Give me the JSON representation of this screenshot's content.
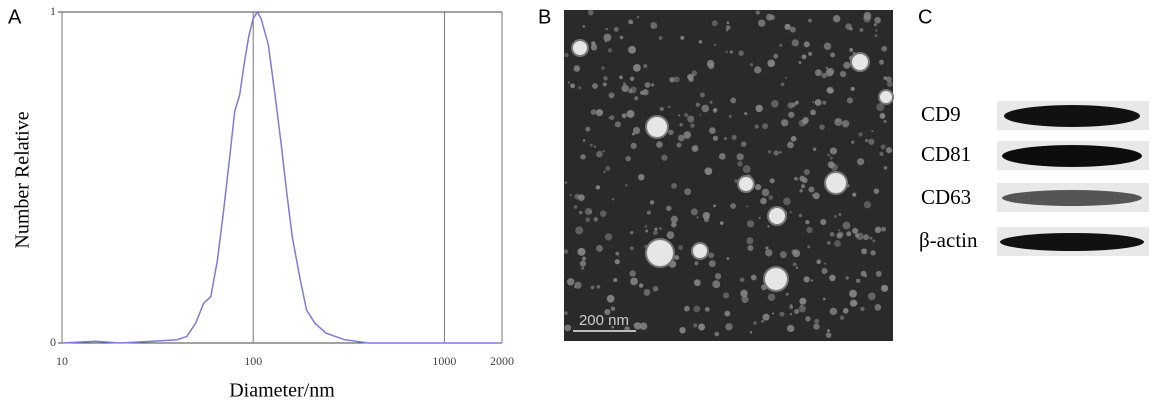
{
  "panels": [
    "A",
    "B",
    "C"
  ],
  "chart_data": {
    "type": "line",
    "xlabel": "Diameter/nm",
    "ylabel": "Number Relative",
    "x": [
      10,
      15,
      20,
      30,
      40,
      45,
      50,
      55,
      60,
      65,
      70,
      75,
      80,
      85,
      90,
      95,
      100,
      105,
      110,
      120,
      130,
      140,
      150,
      160,
      175,
      190,
      210,
      240,
      300,
      400,
      1000,
      2000
    ],
    "values": [
      0,
      0.005,
      0,
      0.005,
      0.01,
      0.02,
      0.06,
      0.12,
      0.14,
      0.25,
      0.4,
      0.55,
      0.7,
      0.75,
      0.85,
      0.93,
      0.98,
      1.0,
      0.98,
      0.9,
      0.75,
      0.6,
      0.45,
      0.32,
      0.2,
      0.1,
      0.06,
      0.03,
      0.01,
      0,
      0,
      0
    ],
    "color": "#7b7bd8",
    "xscale": "log",
    "xlim": [
      10,
      2000
    ],
    "xticks": [
      10,
      100,
      1000,
      2000
    ],
    "ylim": [
      0,
      1
    ],
    "yticks": [
      0,
      1
    ],
    "grid": true
  },
  "micrograph": {
    "scale_bar": "200 nm"
  },
  "blot": {
    "labels": [
      "CD9",
      "CD81",
      "CD63",
      "β-actin"
    ]
  }
}
